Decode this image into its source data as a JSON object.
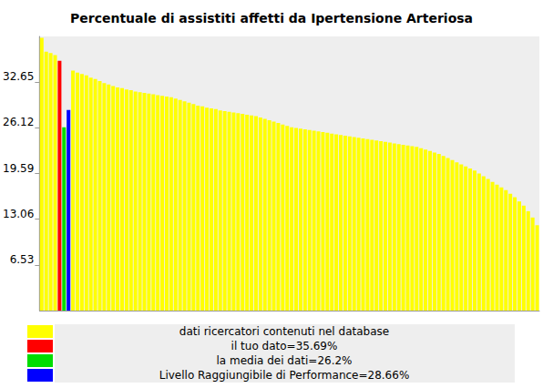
{
  "chart_data": {
    "type": "bar",
    "title": "Percentuale di assistiti affetti da Ipertensione Arteriosa",
    "categories": [
      null,
      null,
      null,
      null,
      null,
      null,
      null,
      null,
      null,
      null,
      null,
      null,
      null,
      null,
      null,
      null,
      null,
      null,
      null,
      null,
      null,
      null,
      null,
      null,
      null,
      null,
      null,
      null,
      null,
      null,
      null,
      null,
      null,
      null,
      null,
      null,
      null,
      null,
      null,
      null,
      null,
      null,
      null,
      null,
      null,
      null,
      null,
      null,
      null,
      null,
      null,
      null,
      null,
      null,
      null,
      null,
      null,
      null,
      null,
      null,
      null,
      null,
      null,
      null,
      null,
      null,
      null,
      null,
      null,
      null,
      null,
      null,
      null,
      null,
      null,
      null,
      null,
      null,
      null,
      null,
      null,
      null,
      null,
      null,
      null,
      null,
      null,
      null,
      null,
      null,
      null,
      null,
      null,
      null,
      null,
      null,
      null,
      null,
      null,
      null,
      null,
      null,
      null,
      null,
      null,
      null,
      null,
      null,
      null,
      null,
      null,
      null
    ],
    "series": [
      {
        "name": "dati ricercatori contenuti nel database",
        "color": "#ffff00",
        "values": [
          39,
          37.0,
          36.8,
          36.5,
          null,
          null,
          null,
          34.3,
          34.0,
          33.8,
          33.6,
          33.3,
          33.1,
          32.8,
          32.5,
          32.3,
          32.1,
          31.9,
          31.8,
          31.6,
          31.5,
          31.3,
          31.2,
          31.1,
          31.0,
          30.9,
          30.8,
          30.7,
          30.6,
          30.5,
          30.3,
          30.1,
          29.9,
          29.7,
          29.5,
          29.3,
          29.2,
          29.0,
          28.9,
          28.8,
          28.6,
          28.5,
          28.4,
          28.3,
          28.2,
          28.1,
          28.0,
          27.9,
          27.8,
          27.6,
          27.4,
          27.2,
          27.0,
          26.8,
          26.6,
          26.4,
          26.2,
          26.1,
          26.0,
          25.9,
          25.8,
          25.7,
          25.6,
          25.5,
          25.4,
          25.3,
          25.2,
          25.1,
          25.0,
          24.9,
          24.8,
          24.7,
          24.6,
          24.5,
          24.4,
          24.3,
          24.2,
          24.1,
          24.0,
          23.9,
          23.8,
          23.7,
          23.6,
          23.5,
          23.4,
          23.2,
          23.0,
          22.8,
          22.6,
          22.4,
          22.1,
          21.8,
          21.5,
          21.2,
          20.9,
          20.6,
          20.3,
          20.0,
          19.6,
          19.2,
          18.8,
          18.4,
          18.0,
          17.6,
          17.2,
          16.7,
          16.2,
          15.6,
          15.0,
          14.2,
          13.3,
          12.2
        ]
      },
      {
        "name": "il tuo dato=35.69%",
        "color": "#ff0000",
        "values": [
          null,
          null,
          null,
          null,
          35.69,
          null,
          null,
          null,
          null,
          null,
          null,
          null,
          null,
          null,
          null,
          null,
          null,
          null,
          null,
          null,
          null,
          null,
          null,
          null,
          null,
          null,
          null,
          null,
          null,
          null,
          null,
          null,
          null,
          null,
          null,
          null,
          null,
          null,
          null,
          null,
          null,
          null,
          null,
          null,
          null,
          null,
          null,
          null,
          null,
          null,
          null,
          null,
          null,
          null,
          null,
          null,
          null,
          null,
          null,
          null,
          null,
          null,
          null,
          null,
          null,
          null,
          null,
          null,
          null,
          null,
          null,
          null,
          null,
          null,
          null,
          null,
          null,
          null,
          null,
          null,
          null,
          null,
          null,
          null,
          null,
          null,
          null,
          null,
          null,
          null,
          null,
          null,
          null,
          null,
          null,
          null,
          null,
          null,
          null,
          null,
          null,
          null,
          null,
          null,
          null,
          null,
          null,
          null,
          null,
          null,
          null,
          null
        ]
      },
      {
        "name": "la media dei dati=26.2%",
        "color": "#00dd00",
        "values": [
          null,
          null,
          null,
          null,
          null,
          26.2,
          null,
          null,
          null,
          null,
          null,
          null,
          null,
          null,
          null,
          null,
          null,
          null,
          null,
          null,
          null,
          null,
          null,
          null,
          null,
          null,
          null,
          null,
          null,
          null,
          null,
          null,
          null,
          null,
          null,
          null,
          null,
          null,
          null,
          null,
          null,
          null,
          null,
          null,
          null,
          null,
          null,
          null,
          null,
          null,
          null,
          null,
          null,
          null,
          null,
          null,
          null,
          null,
          null,
          null,
          null,
          null,
          null,
          null,
          null,
          null,
          null,
          null,
          null,
          null,
          null,
          null,
          null,
          null,
          null,
          null,
          null,
          null,
          null,
          null,
          null,
          null,
          null,
          null,
          null,
          null,
          null,
          null,
          null,
          null,
          null,
          null,
          null,
          null,
          null,
          null,
          null,
          null,
          null,
          null,
          null,
          null,
          null,
          null,
          null,
          null,
          null,
          null,
          null,
          null,
          null,
          null
        ]
      },
      {
        "name": "Livello Raggiungibile di Performance=28.66%",
        "color": "#0000ff",
        "values": [
          null,
          null,
          null,
          null,
          null,
          null,
          28.66,
          null,
          null,
          null,
          null,
          null,
          null,
          null,
          null,
          null,
          null,
          null,
          null,
          null,
          null,
          null,
          null,
          null,
          null,
          null,
          null,
          null,
          null,
          null,
          null,
          null,
          null,
          null,
          null,
          null,
          null,
          null,
          null,
          null,
          null,
          null,
          null,
          null,
          null,
          null,
          null,
          null,
          null,
          null,
          null,
          null,
          null,
          null,
          null,
          null,
          null,
          null,
          null,
          null,
          null,
          null,
          null,
          null,
          null,
          null,
          null,
          null,
          null,
          null,
          null,
          null,
          null,
          null,
          null,
          null,
          null,
          null,
          null,
          null,
          null,
          null,
          null,
          null,
          null,
          null,
          null,
          null,
          null,
          null,
          null,
          null,
          null,
          null,
          null,
          null,
          null,
          null,
          null,
          null,
          null,
          null,
          null,
          null,
          null,
          null,
          null,
          null,
          null,
          null,
          null,
          null
        ]
      }
    ],
    "ylim": [
      0,
      39.18
    ],
    "yticks": [
      6.53,
      13.06,
      19.59,
      26.12,
      32.65
    ],
    "grid": false,
    "legend": "bottom",
    "tick_labels": "y"
  }
}
